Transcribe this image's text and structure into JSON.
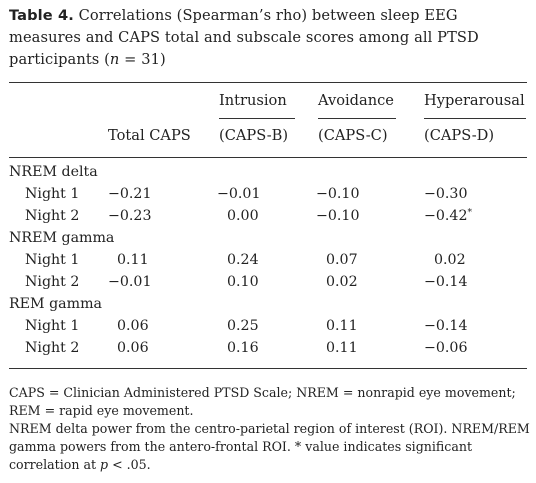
{
  "caption": {
    "label": "Table 4.",
    "text": " Correlations (Spearman’s rho) between sleep EEG measures and CAPS total and subscale scores among all PTSD participants (",
    "n_symbol": "n",
    "n_value": " = 31)"
  },
  "columns": {
    "total": "Total CAPS",
    "intrusion_top": "Intrusion",
    "intrusion_bottom": "(CAPS-B)",
    "avoidance_top": "Avoidance",
    "avoidance_bottom": "(CAPS-C)",
    "hyperarousal_top": "Hyperarousal",
    "hyperarousal_bottom": "(CAPS-D)"
  },
  "sections": [
    {
      "title": "NREM delta",
      "rows": [
        {
          "label": "Night 1",
          "total": "−0.21",
          "intrusion": "−0.01",
          "avoidance": "−0.10",
          "hyperarousal": "−0.30",
          "mark": ""
        },
        {
          "label": "Night 2",
          "total": "−0.23",
          "intrusion": "0.00",
          "avoidance": "−0.10",
          "hyperarousal": "−0.42",
          "mark": "*"
        }
      ]
    },
    {
      "title": "NREM gamma",
      "rows": [
        {
          "label": "Night 1",
          "total": "0.11",
          "intrusion": "0.24",
          "avoidance": "0.07",
          "hyperarousal": "0.02",
          "mark": ""
        },
        {
          "label": "Night 2",
          "total": "−0.01",
          "intrusion": "0.10",
          "avoidance": "0.02",
          "hyperarousal": "−0.14",
          "mark": ""
        }
      ]
    },
    {
      "title": "REM gamma",
      "rows": [
        {
          "label": "Night 1",
          "total": "0.06",
          "intrusion": "0.25",
          "avoidance": "0.11",
          "hyperarousal": "−0.14",
          "mark": ""
        },
        {
          "label": "Night 2",
          "total": "0.06",
          "intrusion": "0.16",
          "avoidance": "0.11",
          "hyperarousal": "−0.06",
          "mark": ""
        }
      ]
    }
  ],
  "footnotes": {
    "line1": "CAPS = Clinician Administered PTSD Scale; NREM = nonrapid eye movement; REM = rapid eye movement.",
    "line2": "NREM delta power from the centro-parietal region of interest (ROI). NREM/REM gamma powers from the antero-frontal ROI. * value indicates significant correlation at ",
    "p_symbol": "p",
    "p_tail": " < .05."
  }
}
